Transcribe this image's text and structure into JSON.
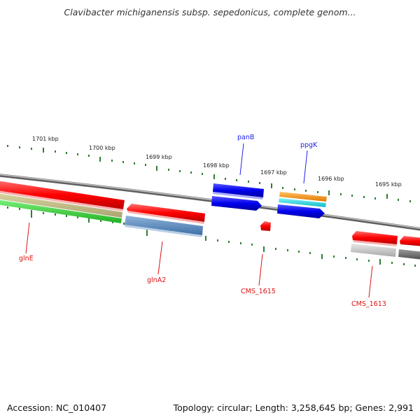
{
  "title": "Clavibacter michiganensis subsp. sepedonicus, complete genom...",
  "footer": {
    "accession": "Accession: NC_010407",
    "topology": "Topology: circular; Length: 3,258,645 bp; Genes: 2,991"
  },
  "scale": {
    "upper_ticks": [
      "1701 kbp",
      "1700 kbp",
      "1699 kbp",
      "1698 kbp",
      "1697 kbp",
      "1696 kbp",
      "1695 kbp"
    ]
  },
  "genes": {
    "top": [
      "panB",
      "ppgK"
    ],
    "bottom": [
      "glnE",
      "glnA2",
      "CMS_1615",
      "CMS_1613"
    ]
  },
  "colors": {
    "forward_gene": "#ff0000",
    "reverse_gene": "#0000ee",
    "backbone": "#888888",
    "tick": "#2f7f2f",
    "top_label": "#2020ee",
    "bottom_label": "#dd1111"
  }
}
